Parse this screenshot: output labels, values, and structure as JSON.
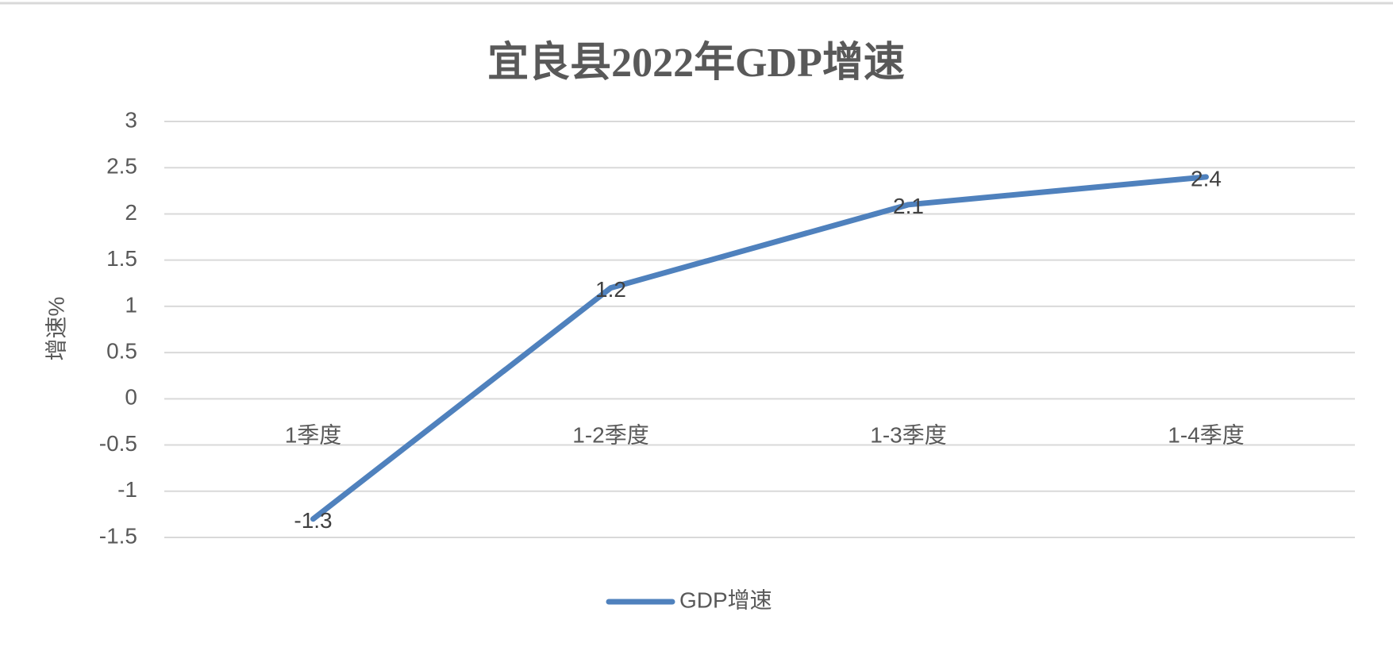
{
  "chart_data": {
    "type": "line",
    "title": "宜良县2022年GDP增速",
    "y_label": "增速%",
    "categories": [
      "1季度",
      "1-2季度",
      "1-3季度",
      "1-4季度"
    ],
    "series": [
      {
        "name": "GDP增速",
        "color": "#4f81bd",
        "values": [
          -1.3,
          1.2,
          2.1,
          2.4
        ]
      }
    ],
    "ylim": [
      -1.5,
      3
    ],
    "yticks": [
      -1.5,
      -1,
      -0.5,
      0,
      0.5,
      1,
      1.5,
      2,
      2.5,
      3
    ],
    "grid": true,
    "legend": "bottom",
    "data_labels": true
  }
}
